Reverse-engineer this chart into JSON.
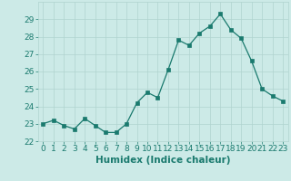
{
  "x": [
    0,
    1,
    2,
    3,
    4,
    5,
    6,
    7,
    8,
    9,
    10,
    11,
    12,
    13,
    14,
    15,
    16,
    17,
    18,
    19,
    20,
    21,
    22,
    23
  ],
  "y": [
    23.0,
    23.2,
    22.9,
    22.7,
    23.3,
    22.9,
    22.5,
    22.5,
    23.0,
    24.2,
    24.8,
    24.5,
    26.1,
    27.8,
    27.5,
    28.2,
    28.6,
    29.3,
    28.4,
    27.9,
    26.6,
    25.0,
    24.6,
    24.3
  ],
  "xlabel": "Humidex (Indice chaleur)",
  "ylim": [
    22,
    30
  ],
  "yticks": [
    22,
    23,
    24,
    25,
    26,
    27,
    28,
    29
  ],
  "xticks": [
    0,
    1,
    2,
    3,
    4,
    5,
    6,
    7,
    8,
    9,
    10,
    11,
    12,
    13,
    14,
    15,
    16,
    17,
    18,
    19,
    20,
    21,
    22,
    23
  ],
  "line_color": "#1a7a6e",
  "marker_color": "#1a7a6e",
  "bg_color": "#cceae7",
  "grid_color": "#b0d4d0",
  "tick_color": "#1a7a6e",
  "label_color": "#1a7a6e",
  "font_size": 6.5,
  "xlabel_fontsize": 7.5
}
